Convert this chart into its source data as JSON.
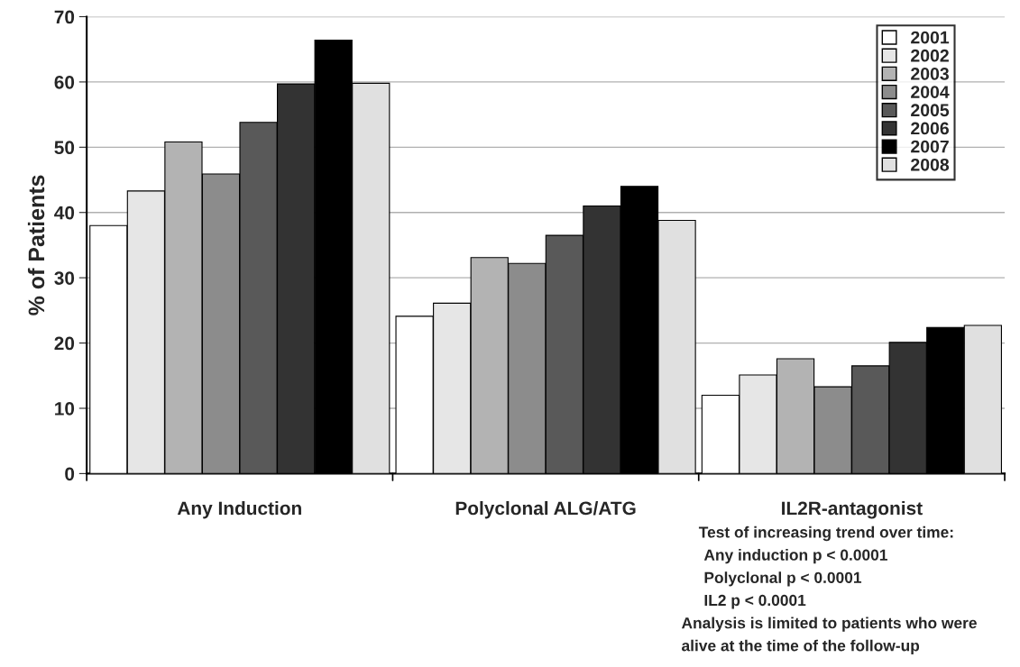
{
  "chart_data": {
    "type": "bar",
    "ylabel": "% of Patients",
    "categories": [
      "Any Induction",
      "Polyclonal ALG/ATG",
      "IL2R-antagonist"
    ],
    "series": [
      {
        "name": "2001",
        "color": "#ffffff",
        "values": [
          38.0,
          24.1,
          12.0
        ]
      },
      {
        "name": "2002",
        "color": "#e6e6e6",
        "values": [
          43.3,
          26.1,
          15.1
        ]
      },
      {
        "name": "2003",
        "color": "#b3b3b3",
        "values": [
          50.8,
          33.1,
          17.6
        ]
      },
      {
        "name": "2004",
        "color": "#8c8c8c",
        "values": [
          45.9,
          32.2,
          13.3
        ]
      },
      {
        "name": "2005",
        "color": "#595959",
        "values": [
          53.8,
          36.5,
          16.5
        ]
      },
      {
        "name": "2006",
        "color": "#333333",
        "values": [
          59.7,
          41.0,
          20.1
        ]
      },
      {
        "name": "2007",
        "color": "#000000",
        "values": [
          66.4,
          44.0,
          22.4
        ]
      },
      {
        "name": "2008",
        "color": "#e0e0e0",
        "values": [
          59.8,
          38.8,
          22.7
        ]
      }
    ],
    "ylim": [
      0,
      70
    ],
    "yticks": [
      0,
      10,
      20,
      30,
      40,
      50,
      60,
      70
    ],
    "grid": "y",
    "legend": "top right",
    "annotations": [
      "Test of increasing trend over time:",
      "Any induction p < 0.0001",
      "Polyclonal p < 0.0001",
      "IL2 p < 0.0001",
      "Analysis is limited to patients who were",
      "alive at the time of the follow-up"
    ]
  }
}
